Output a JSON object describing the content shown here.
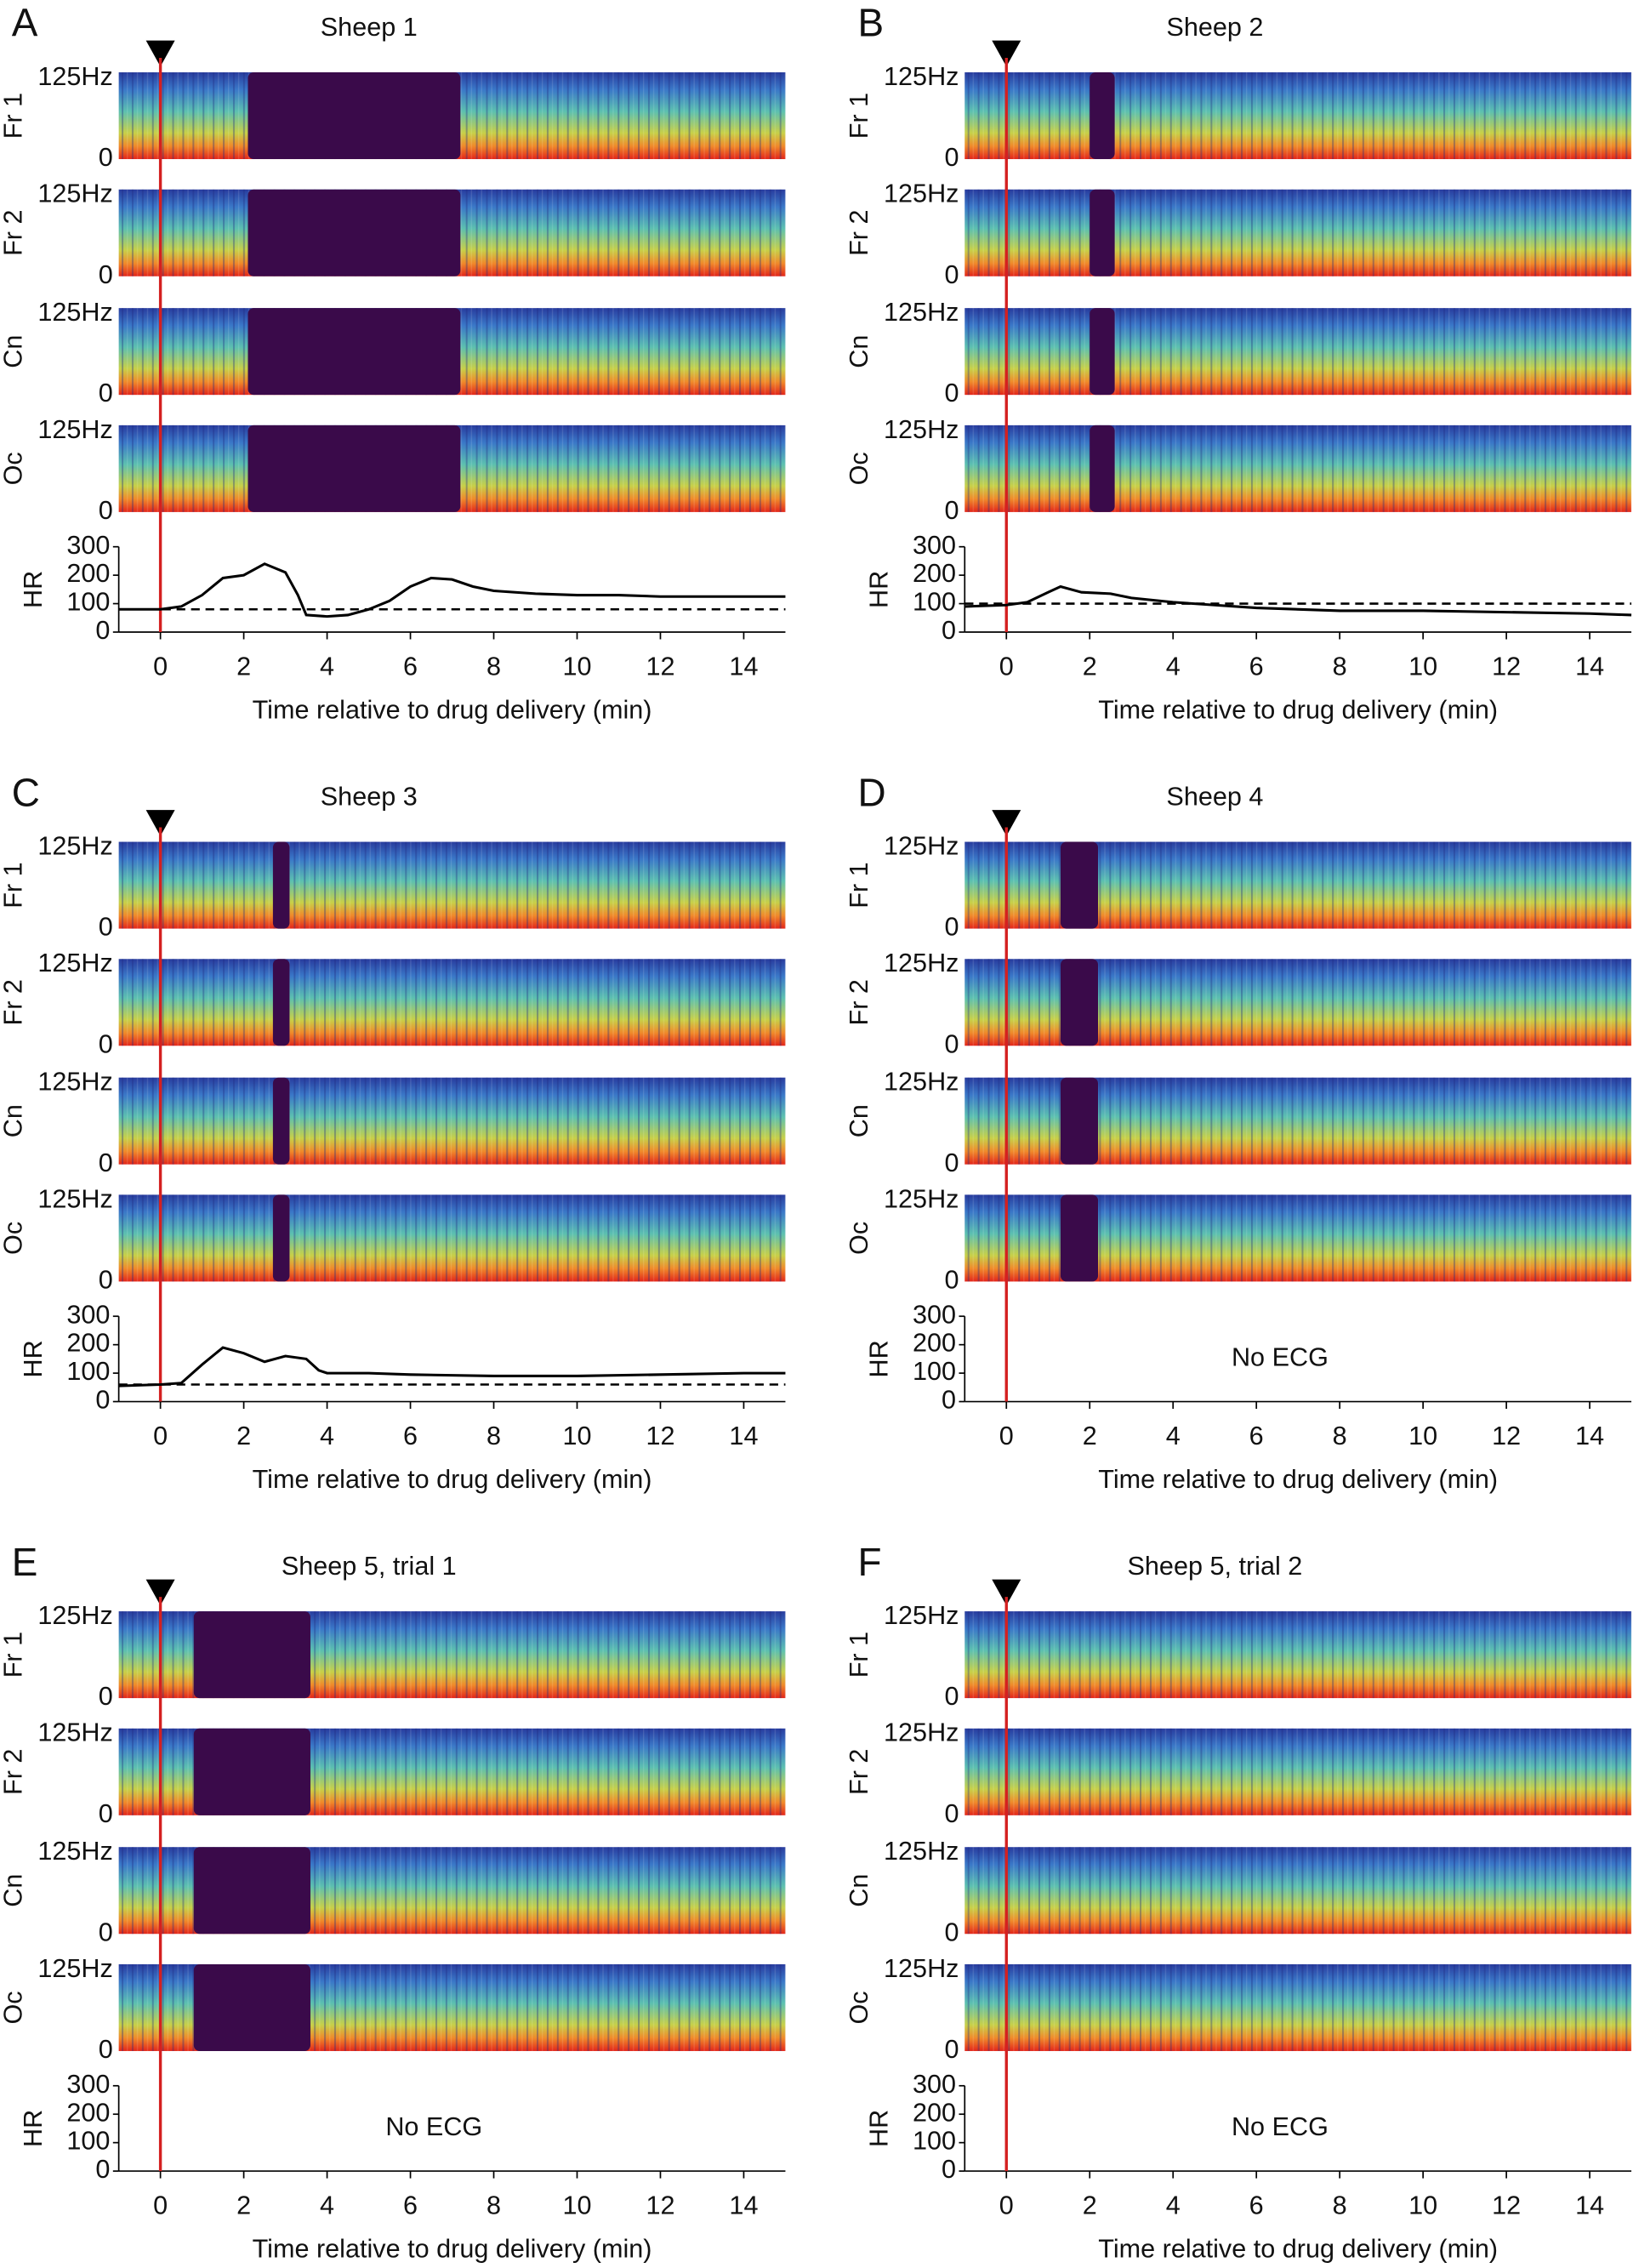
{
  "chart_data": [
    {
      "type": "line",
      "panel": "A",
      "title": "Sheep 1",
      "channels": [
        "Fr 1",
        "Fr 2",
        "Cn",
        "Oc"
      ],
      "freq_ticks": [
        {
          "value": 125,
          "label": "125Hz"
        },
        0
      ],
      "ylabel": "HR",
      "ylim": [
        0,
        300
      ],
      "yticks": [
        0,
        100,
        200,
        300
      ],
      "xlim": [
        -1,
        15
      ],
      "xticks": [
        0,
        2,
        4,
        6,
        8,
        10,
        12,
        14
      ],
      "xlabel": "Time relative to drug delivery (min)",
      "x": [
        -1,
        0,
        0.5,
        1,
        1.5,
        2,
        2.5,
        3,
        3.3,
        3.5,
        4,
        4.5,
        5,
        5.5,
        6,
        6.5,
        7,
        7.5,
        8,
        9,
        10,
        11,
        12,
        13,
        14,
        15
      ],
      "values": [
        80,
        80,
        90,
        130,
        190,
        200,
        240,
        210,
        130,
        60,
        55,
        60,
        80,
        110,
        160,
        190,
        185,
        160,
        145,
        135,
        130,
        130,
        125,
        125,
        125,
        125
      ],
      "baseline": 80,
      "color": "#000000"
    },
    {
      "type": "line",
      "panel": "B",
      "title": "Sheep 2",
      "channels": [
        "Fr 1",
        "Fr 2",
        "Cn",
        "Oc"
      ],
      "freq_ticks": [
        {
          "value": 125,
          "label": "125Hz"
        },
        0
      ],
      "ylabel": "HR",
      "ylim": [
        0,
        300
      ],
      "yticks": [
        0,
        100,
        200,
        300
      ],
      "xlim": [
        -1,
        15
      ],
      "xticks": [
        0,
        2,
        4,
        6,
        8,
        10,
        12,
        14
      ],
      "xlabel": "Time relative to drug delivery (min)",
      "x": [
        -1,
        0,
        0.5,
        1,
        1.3,
        1.8,
        2.5,
        3,
        4,
        5,
        6,
        8,
        10,
        12,
        14,
        15
      ],
      "values": [
        90,
        95,
        105,
        140,
        160,
        140,
        135,
        120,
        105,
        95,
        85,
        75,
        75,
        70,
        65,
        60
      ],
      "baseline": 100,
      "color": "#000000"
    },
    {
      "type": "line",
      "panel": "C",
      "title": "Sheep 3",
      "channels": [
        "Fr 1",
        "Fr 2",
        "Cn",
        "Oc"
      ],
      "freq_ticks": [
        {
          "value": 125,
          "label": "125Hz"
        },
        0
      ],
      "ylabel": "HR",
      "ylim": [
        0,
        300
      ],
      "yticks": [
        0,
        100,
        200,
        300
      ],
      "xlim": [
        -1,
        15
      ],
      "xticks": [
        0,
        2,
        4,
        6,
        8,
        10,
        12,
        14
      ],
      "xlabel": "Time relative to drug delivery (min)",
      "x": [
        -1,
        0,
        0.5,
        1,
        1.5,
        2,
        2.5,
        3,
        3.5,
        3.8,
        4,
        5,
        6,
        8,
        10,
        12,
        14,
        15
      ],
      "values": [
        55,
        60,
        65,
        130,
        190,
        170,
        140,
        160,
        150,
        110,
        100,
        100,
        95,
        90,
        90,
        95,
        100,
        100
      ],
      "baseline": 60,
      "color": "#000000"
    },
    {
      "type": "line",
      "panel": "D",
      "title": "Sheep 4",
      "channels": [
        "Fr 1",
        "Fr 2",
        "Cn",
        "Oc"
      ],
      "freq_ticks": [
        {
          "value": 125,
          "label": "125Hz"
        },
        0
      ],
      "ylabel": "HR",
      "ylim": [
        0,
        300
      ],
      "yticks": [
        0,
        100,
        200,
        300
      ],
      "xlim": [
        -1,
        15
      ],
      "xticks": [
        0,
        2,
        4,
        6,
        8,
        10,
        12,
        14
      ],
      "xlabel": "Time relative to drug delivery (min)",
      "note": "No ECG"
    },
    {
      "type": "line",
      "panel": "E",
      "title": "Sheep 5, trial 1",
      "channels": [
        "Fr 1",
        "Fr 2",
        "Cn",
        "Oc"
      ],
      "freq_ticks": [
        {
          "value": 125,
          "label": "125Hz"
        },
        0
      ],
      "ylabel": "HR",
      "ylim": [
        0,
        300
      ],
      "yticks": [
        0,
        100,
        200,
        300
      ],
      "xlim": [
        -1,
        15
      ],
      "xticks": [
        0,
        2,
        4,
        6,
        8,
        10,
        12,
        14
      ],
      "xlabel": "Time relative to drug delivery (min)",
      "note": "No ECG"
    },
    {
      "type": "line",
      "panel": "F",
      "title": "Sheep 5, trial 2",
      "channels": [
        "Fr 1",
        "Fr 2",
        "Cn",
        "Oc"
      ],
      "freq_ticks": [
        {
          "value": 125,
          "label": "125Hz"
        },
        0
      ],
      "ylabel": "HR",
      "ylim": [
        0,
        300
      ],
      "yticks": [
        0,
        100,
        200,
        300
      ],
      "xlim": [
        -1,
        15
      ],
      "xticks": [
        0,
        2,
        4,
        6,
        8,
        10,
        12,
        14
      ],
      "xlabel": "Time relative to drug delivery (min)",
      "note": "No ECG"
    }
  ]
}
